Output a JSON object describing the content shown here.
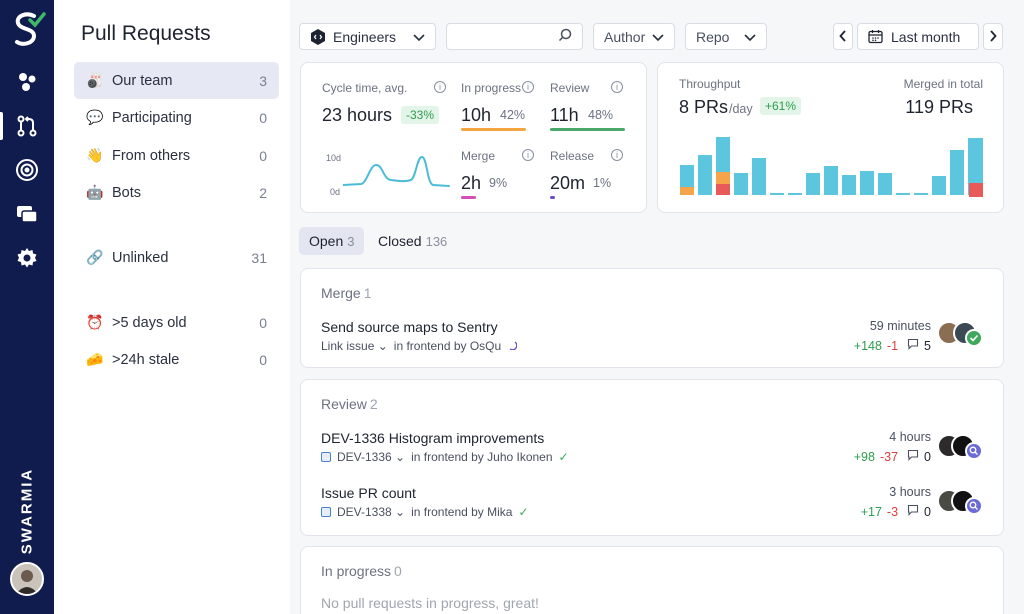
{
  "rail": {
    "brand": "SWARMIA",
    "icons": [
      "logo-icon",
      "overview-icon",
      "pull-requests-icon",
      "focus-icon",
      "work-log-icon",
      "settings-icon"
    ]
  },
  "sidebar": {
    "title": "Pull Requests",
    "items": [
      {
        "label": "Our team",
        "count": "3",
        "icon": "bowling-emoji"
      },
      {
        "label": "Participating",
        "count": "0",
        "icon": "speech-bubble-emoji"
      },
      {
        "label": "From others",
        "count": "0",
        "icon": "waving-hand-emoji"
      },
      {
        "label": "Bots",
        "count": "2",
        "icon": "robot-emoji"
      },
      {
        "label": "Unlinked",
        "count": "31",
        "icon": "link-emoji"
      },
      {
        "label": ">5 days old",
        "count": "0",
        "icon": "alarm-clock-emoji"
      },
      {
        "label": ">24h stale",
        "count": "0",
        "icon": "cheese-emoji"
      }
    ]
  },
  "toolbar": {
    "team": "Engineers",
    "search_placeholder": "",
    "author": "Author",
    "repo": "Repo",
    "period": "Last month"
  },
  "metrics": {
    "cycle_label": "Cycle time, avg.",
    "cycle_value": "23 hours",
    "cycle_change": "-33%",
    "chart_top": "10d",
    "chart_bottom": "0d",
    "inprogress_label": "In progress",
    "inprogress_value": "10h",
    "inprogress_pct": "42%",
    "review_label": "Review",
    "review_value": "11h",
    "review_pct": "48%",
    "merge_label": "Merge",
    "merge_value": "2h",
    "merge_pct": "9%",
    "release_label": "Release",
    "release_value": "20m",
    "release_pct": "1%",
    "colors": {
      "inprogress": "#f2a540",
      "review": "#4aa86a",
      "merge": "#d64fb4",
      "release": "#6a4bd0",
      "line": "#4bbcd6"
    }
  },
  "throughput": {
    "label": "Throughput",
    "value": "8 PRs",
    "unit": "/day",
    "change": "+61%",
    "merged_label": "Merged in total",
    "merged_value": "119 PRs",
    "colors": {
      "blue": "#5cc6de",
      "orange": "#f5a44a",
      "red": "#e85a5a"
    }
  },
  "tabs": [
    {
      "label": "Open",
      "count": "3"
    },
    {
      "label": "Closed",
      "count": "136"
    }
  ],
  "sections": {
    "merge": {
      "title": "Merge",
      "count": "1",
      "prs": [
        {
          "title": "Send source maps to Sentry",
          "issue": "Link issue",
          "location": "in frontend by OsQu",
          "time": "59 minutes",
          "plus": "+148",
          "minus": "-1",
          "comments": "5"
        }
      ]
    },
    "review": {
      "title": "Review",
      "count": "2",
      "prs": [
        {
          "title": "DEV-1336 Histogram improvements",
          "issue": "DEV-1336",
          "location": "in frontend by Juho Ikonen",
          "time": "4 hours",
          "plus": "+98",
          "minus": "-37",
          "comments": "0"
        },
        {
          "title": "Issue PR count",
          "issue": "DEV-1338",
          "location": "in frontend by Mika",
          "time": "3 hours",
          "plus": "+17",
          "minus": "-3",
          "comments": "0"
        }
      ]
    },
    "inprogress": {
      "title": "In progress",
      "count": "0",
      "empty": "No pull requests in progress, great!"
    }
  }
}
